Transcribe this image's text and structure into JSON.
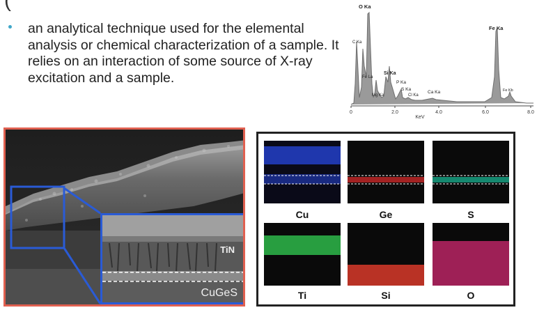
{
  "heading_fragment": "(",
  "bullet": {
    "text": "an analytical technique used for the elemental analysis or chemical characterization of a sample. It relies on an interaction of some source of X-ray excitation and a sample."
  },
  "spectrum": {
    "xlabel": "KeV",
    "xticks": [
      "0",
      "2.0",
      "4.0",
      "6.0",
      "8.0"
    ],
    "peaks": {
      "o": "O Ka",
      "fe": "Fe Ka",
      "c": "C Ka",
      "fel": "Fe La",
      "si": "Si Ka",
      "p": "P Ka",
      "s": "S Ka",
      "mg": "Mg Ka",
      "cl": "Cl Ka",
      "ca": "Ca Ka",
      "feb": "Fe Kb"
    }
  },
  "sem": {
    "tin_label": "TiN",
    "layer_label": "CuGeS"
  },
  "maps": [
    {
      "label": "Cu",
      "color": "#2340c8"
    },
    {
      "label": "Ge",
      "color": "#c82828"
    },
    {
      "label": "S",
      "color": "#18a888"
    },
    {
      "label": "Ti",
      "color": "#2eb84a"
    },
    {
      "label": "Si",
      "color": "#d83a2a"
    },
    {
      "label": "O",
      "color": "#d02870"
    }
  ],
  "colors": {
    "sem_frame": "#e06050",
    "inset_frame": "#2a5bd6",
    "bullet": "#3fa7c9"
  }
}
